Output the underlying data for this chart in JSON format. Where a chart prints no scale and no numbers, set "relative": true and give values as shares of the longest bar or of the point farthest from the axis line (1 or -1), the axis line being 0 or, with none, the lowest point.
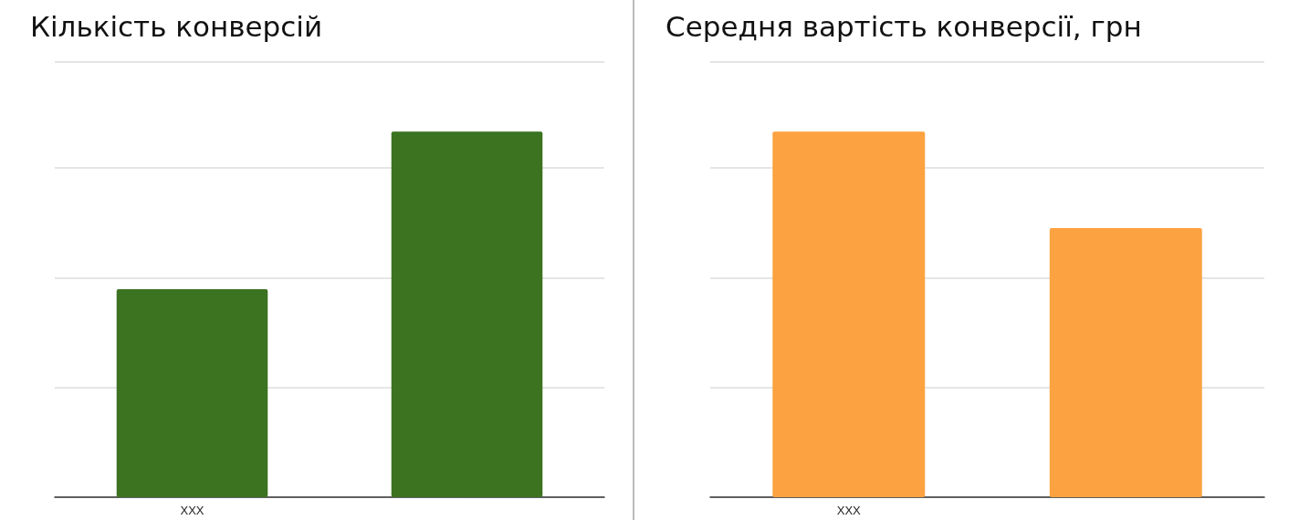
{
  "chart_data": [
    {
      "type": "bar",
      "title": "Кількість конверсій",
      "categories": [
        "XXX",
        null
      ],
      "values": [
        0.569,
        1
      ],
      "color": "#3b7320",
      "relative": true,
      "grid": true
    },
    {
      "type": "bar",
      "title": "Середня вартість конверсії, грн",
      "categories": [
        "XXX",
        null
      ],
      "values": [
        1,
        0.736
      ],
      "color": "#fda240",
      "relative": true,
      "grid": true
    }
  ]
}
